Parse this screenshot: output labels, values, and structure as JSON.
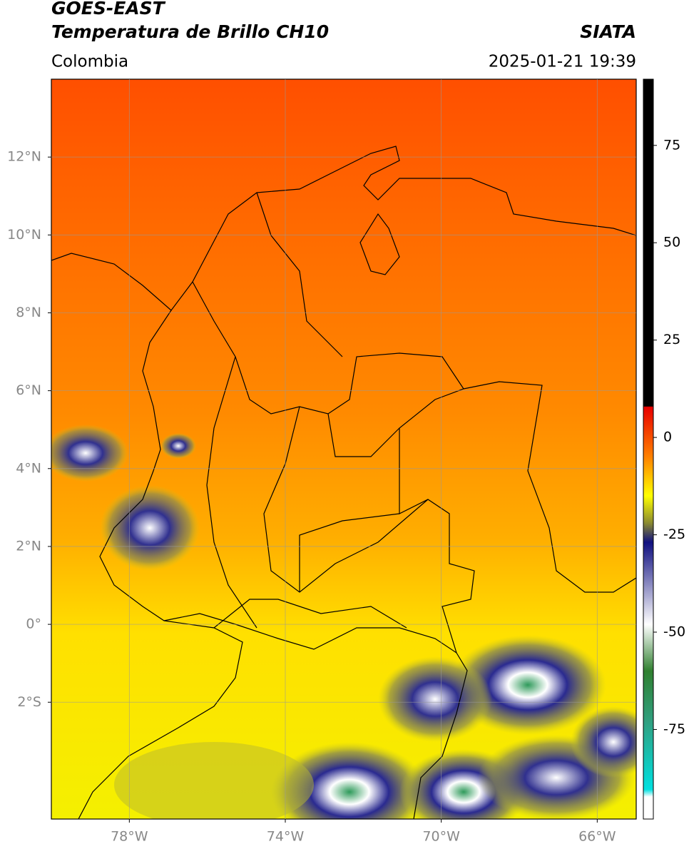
{
  "header": {
    "title": "GOES-EAST",
    "subtitle": "Temperatura de Brillo CH10",
    "source": "SIATA",
    "region": "Colombia",
    "datetime": "2025-01-21 19:39"
  },
  "map": {
    "xlim": [
      -80,
      -65
    ],
    "ylim": [
      -5,
      14
    ],
    "xticks": [
      {
        "value": -78,
        "label": "78°W"
      },
      {
        "value": -74,
        "label": "74°W"
      },
      {
        "value": -70,
        "label": "70°W"
      },
      {
        "value": -66,
        "label": "66°W"
      }
    ],
    "yticks": [
      {
        "value": 12,
        "label": "12°N"
      },
      {
        "value": 10,
        "label": "10°N"
      },
      {
        "value": 8,
        "label": "8°N"
      },
      {
        "value": 6,
        "label": "6°N"
      },
      {
        "value": 4,
        "label": "4°N"
      },
      {
        "value": 2,
        "label": "2°N"
      },
      {
        "value": 0,
        "label": "0°"
      },
      {
        "value": -2,
        "label": "2°S"
      }
    ],
    "grid": true
  },
  "colorbar": {
    "lim": [
      -98,
      92
    ],
    "ticks": [
      75,
      50,
      25,
      0,
      -25,
      -50,
      -75
    ]
  }
}
